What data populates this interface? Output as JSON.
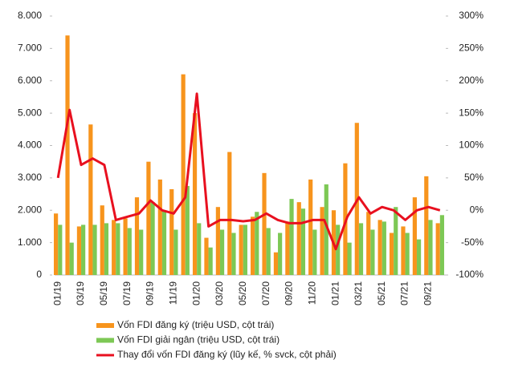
{
  "chart_data": {
    "type": "bar-line",
    "categories": [
      "01/19",
      null,
      "03/19",
      null,
      "05/19",
      null,
      "07/19",
      null,
      "09/19",
      null,
      "11/19",
      null,
      "01/20",
      null,
      "03/20",
      null,
      "05/20",
      null,
      "07/20",
      null,
      "09/20",
      null,
      "11/20",
      null,
      "01/21",
      null,
      "03/21",
      null,
      "05/21",
      null,
      "07/21",
      null,
      "09/21",
      null
    ],
    "series": [
      {
        "name": "Vốn FDI đăng ký (triệu USD, cột trái)",
        "color": "#f7941d",
        "type": "bar",
        "values": [
          1900,
          7400,
          1500,
          4650,
          2150,
          1700,
          1750,
          2400,
          3500,
          2950,
          2650,
          6200,
          5000,
          1150,
          2100,
          3800,
          1550,
          1800,
          3150,
          700,
          1650,
          2250,
          2950,
          2100,
          2000,
          3450,
          4700,
          1950,
          1700,
          1300,
          1500,
          2400,
          3050,
          1600
        ]
      },
      {
        "name": "Vốn FDI giải ngân (triệu USD, cột trái)",
        "color": "#7dc855",
        "type": "bar",
        "values": [
          1550,
          1000,
          1550,
          1550,
          1600,
          1600,
          1450,
          1400,
          2250,
          2000,
          1400,
          2750,
          1600,
          850,
          1400,
          1300,
          1550,
          1950,
          1450,
          1300,
          2350,
          2050,
          1400,
          2800,
          1550,
          1000,
          1600,
          1400,
          1650,
          2100,
          1300,
          1100,
          1700,
          1850
        ]
      },
      {
        "name": "Thay đổi vốn FDI đăng ký (lũy kế, % svck, cột phải)",
        "color": "#e8101f",
        "type": "line",
        "axis": "y2",
        "values": [
          50,
          155,
          70,
          80,
          70,
          -15,
          -10,
          -5,
          15,
          0,
          -5,
          20,
          180,
          -25,
          -15,
          -15,
          -17,
          -15,
          -5,
          -15,
          -20,
          -20,
          -15,
          -15,
          -60,
          -10,
          20,
          -5,
          5,
          0,
          -15,
          0,
          5,
          0
        ]
      }
    ],
    "ylim": [
      0,
      8000
    ],
    "yticks": [
      0,
      {
        "value": 1000,
        "label": "1.000"
      },
      {
        "value": 2000,
        "label": "2.000"
      },
      {
        "value": 3000,
        "label": "3.000"
      },
      {
        "value": 4000,
        "label": "4.000"
      },
      {
        "value": 5000,
        "label": "5.000"
      },
      {
        "value": 6000,
        "label": "6.000"
      },
      {
        "value": 7000,
        "label": "7.000"
      },
      {
        "value": 8000,
        "label": "8.000"
      }
    ],
    "y2lim": [
      -100,
      300
    ],
    "y2ticks": [
      {
        "value": -100,
        "label": "-100%"
      },
      {
        "value": -50,
        "label": "-50%"
      },
      {
        "value": 0,
        "label": "0%"
      },
      {
        "value": 50,
        "label": "50%"
      },
      {
        "value": 100,
        "label": "100%"
      },
      {
        "value": 150,
        "label": "150%"
      },
      {
        "value": 200,
        "label": "200%"
      },
      {
        "value": 250,
        "label": "250%"
      },
      {
        "value": 300,
        "label": "300%"
      }
    ],
    "grid": false
  }
}
